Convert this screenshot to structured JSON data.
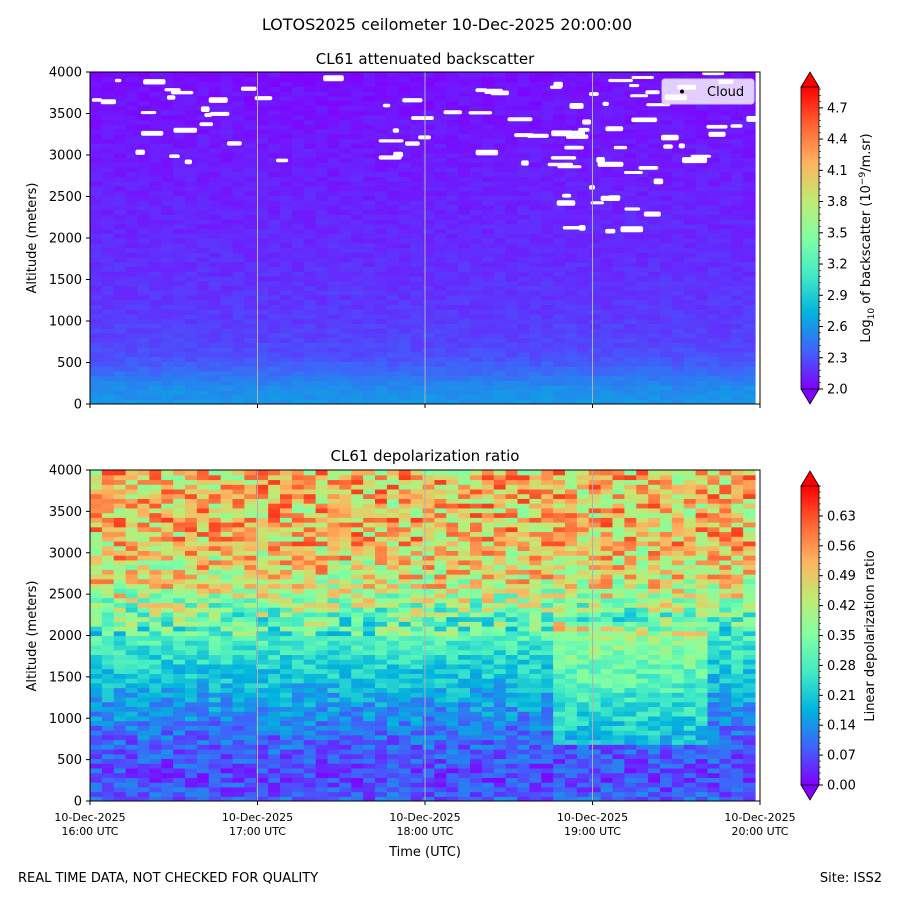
{
  "figure": {
    "suptitle": "LOTOS2025 ceilometer 10-Dec-2025 20:00:00",
    "footer_left": "REAL TIME DATA, NOT CHECKED FOR QUALITY",
    "footer_right": "Site: ISS2",
    "xlabel": "Time (UTC)"
  },
  "colors": {
    "cloud_marker": "#ffffff",
    "gridline": "#b0b0b0",
    "rainbow": [
      "#8000ff",
      "#4062fa",
      "#01b3de",
      "#41eac6",
      "#81ffa3",
      "#c1ea72",
      "#ffb360",
      "#ff6233",
      "#ff0000"
    ]
  },
  "chart_data": [
    {
      "type": "heatmap",
      "title": "CL61 attenuated backscatter",
      "ylabel": "Altitude (meters)",
      "xlabel": "",
      "ylim": [
        0,
        4000
      ],
      "yticks": [
        0,
        500,
        1000,
        1500,
        2000,
        2500,
        3000,
        3500,
        4000
      ],
      "x_tick_labels": [
        {
          "date": "10-Dec-2025",
          "time": "16:00 UTC"
        },
        {
          "date": "10-Dec-2025",
          "time": "17:00 UTC"
        },
        {
          "date": "10-Dec-2025",
          "time": "18:00 UTC"
        },
        {
          "date": "10-Dec-2025",
          "time": "19:00 UTC"
        },
        {
          "date": "10-Dec-2025",
          "time": "20:00 UTC"
        }
      ],
      "xlim_hours": [
        16,
        20
      ],
      "show_x_tick_labels": false,
      "legend": {
        "label": "Cloud",
        "location": "top-right"
      },
      "colorbar": {
        "label": "Log10 of backscatter (10⁻⁹/m.sr)",
        "label_main": "Log",
        "label_sub": "10",
        "label_rest": " of backscatter (10",
        "label_sup": "−9",
        "label_end": "/m.sr)",
        "range": [
          2.0,
          4.9
        ],
        "ticks": [
          "2.0",
          "2.3",
          "2.6",
          "2.9",
          "3.2",
          "3.5",
          "3.8",
          "4.1",
          "4.4",
          "4.7"
        ],
        "extend": "both"
      },
      "profile": [
        {
          "altitude_m": 0,
          "value": 2.6
        },
        {
          "altitude_m": 200,
          "value": 2.55
        },
        {
          "altitude_m": 400,
          "value": 2.4
        },
        {
          "altitude_m": 600,
          "value": 2.28
        },
        {
          "altitude_m": 1000,
          "value": 2.22
        },
        {
          "altitude_m": 1500,
          "value": 2.18
        },
        {
          "altitude_m": 2500,
          "value": 2.12
        },
        {
          "altitude_m": 4000,
          "value": 2.05
        }
      ],
      "cloud_region": {
        "altitude_range_m": [
          2050,
          3980
        ],
        "time_range_h": [
          16.0,
          20.0
        ]
      }
    },
    {
      "type": "heatmap",
      "title": "CL61 depolarization ratio",
      "ylabel": "Altitude (meters)",
      "xlabel": "Time (UTC)",
      "ylim": [
        0,
        4000
      ],
      "yticks": [
        0,
        500,
        1000,
        1500,
        2000,
        2500,
        3000,
        3500,
        4000
      ],
      "x_tick_labels": [
        {
          "date": "10-Dec-2025",
          "time": "16:00 UTC"
        },
        {
          "date": "10-Dec-2025",
          "time": "17:00 UTC"
        },
        {
          "date": "10-Dec-2025",
          "time": "18:00 UTC"
        },
        {
          "date": "10-Dec-2025",
          "time": "19:00 UTC"
        },
        {
          "date": "10-Dec-2025",
          "time": "20:00 UTC"
        }
      ],
      "xlim_hours": [
        16,
        20
      ],
      "show_x_tick_labels": true,
      "colorbar": {
        "label": "Linear depolarization ratio",
        "range": [
          0.0,
          0.7
        ],
        "ticks": [
          "0.00",
          "0.07",
          "0.14",
          "0.21",
          "0.28",
          "0.35",
          "0.42",
          "0.49",
          "0.56",
          "0.63"
        ],
        "extend": "both"
      },
      "profile": [
        {
          "altitude_m": 0,
          "value": 0.09
        },
        {
          "altitude_m": 300,
          "value": 0.06
        },
        {
          "altitude_m": 800,
          "value": 0.1
        },
        {
          "altitude_m": 1300,
          "value": 0.17
        },
        {
          "altitude_m": 1800,
          "value": 0.25
        },
        {
          "altitude_m": 2200,
          "value": 0.33
        },
        {
          "altitude_m": 2600,
          "value": 0.45
        },
        {
          "altitude_m": 3200,
          "value": 0.5
        },
        {
          "altitude_m": 4000,
          "value": 0.5
        }
      ]
    }
  ]
}
